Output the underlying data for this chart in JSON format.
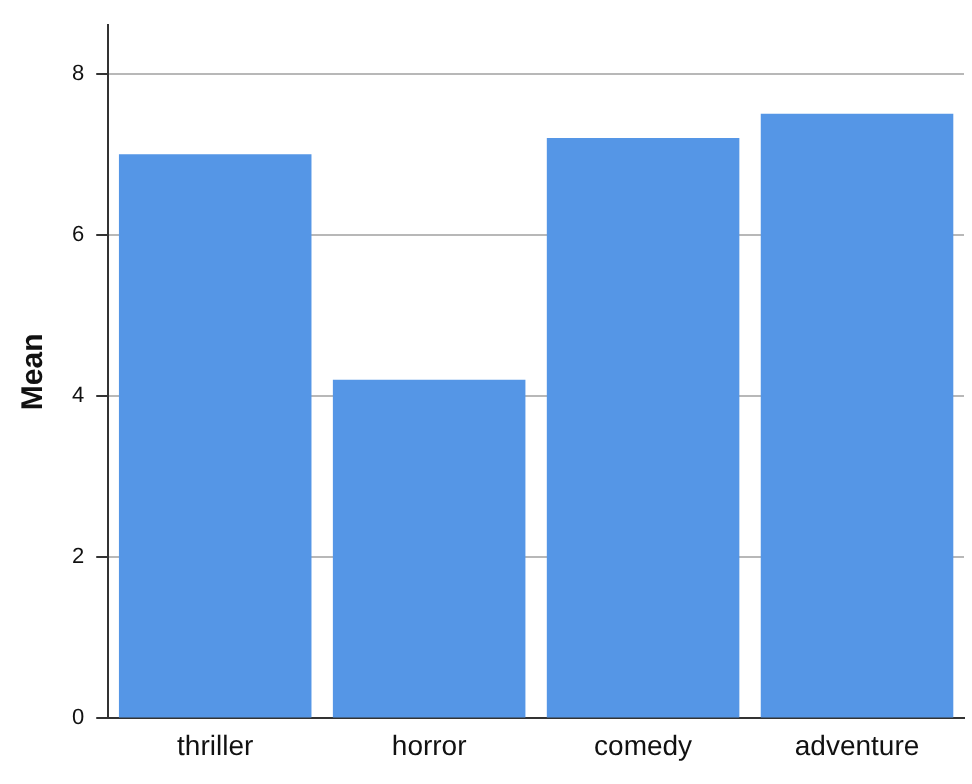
{
  "chart_data": {
    "type": "bar",
    "ylabel": "Mean",
    "categories": [
      "thriller",
      "horror",
      "comedy",
      "adventure"
    ],
    "values": [
      7.0,
      4.2,
      7.2,
      7.5
    ],
    "color": "#5596e6",
    "ylim": [
      0,
      8.6
    ],
    "yticks": [
      0,
      2,
      4,
      6,
      8
    ],
    "grid": "y",
    "legend": false
  }
}
